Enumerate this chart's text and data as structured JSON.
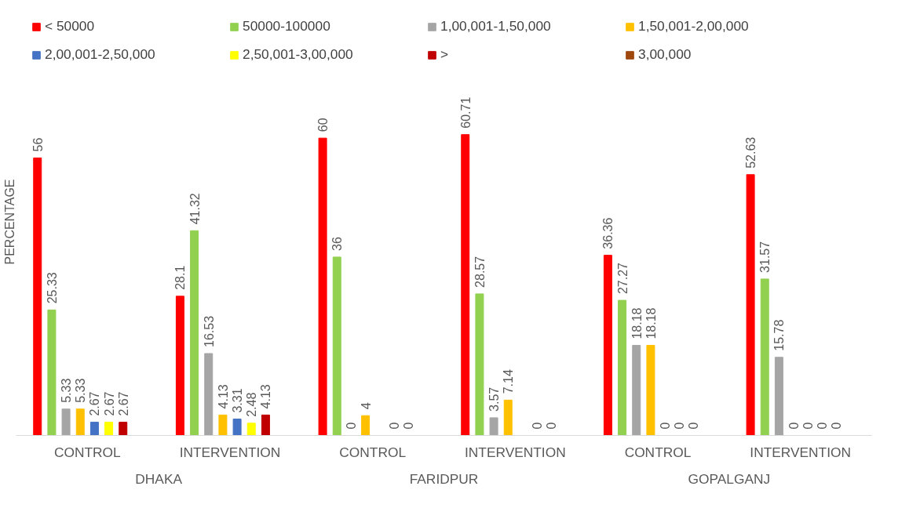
{
  "chart_data": {
    "type": "bar",
    "ylabel": "PERCENTAGE",
    "categories": [
      "CONTROL",
      "INTERVENTION",
      "CONTROL",
      "INTERVENTION",
      "CONTROL",
      "INTERVENTION"
    ],
    "annotations": [
      "DHAKA",
      "FARIDPUR",
      "GOPALGANJ"
    ],
    "tick_labels": "x",
    "grid": false,
    "legend": "top",
    "data_labels": true,
    "series": [
      {
        "name": "< 50000",
        "color": "#ff0000",
        "values": [
          56,
          28.1,
          60,
          60.71,
          36.36,
          52.63
        ]
      },
      {
        "name": "50000-100000",
        "color": "#92d050",
        "values": [
          25.33,
          41.32,
          36,
          28.57,
          27.27,
          31.57
        ]
      },
      {
        "name": "1,00,001-1,50,000",
        "color": "#a5a5a5",
        "values": [
          5.33,
          16.53,
          0,
          3.57,
          18.18,
          15.78
        ]
      },
      {
        "name": "1,50,001-2,00,000",
        "color": "#ffc000",
        "values": [
          5.33,
          4.13,
          4,
          7.14,
          18.18,
          0
        ]
      },
      {
        "name": "2,00,001-2,50,000",
        "color": "#4472c4",
        "values": [
          2.67,
          3.31,
          null,
          null,
          0,
          0
        ]
      },
      {
        "name": "2,50,001-3,00,000",
        "color": "#ffff00",
        "values": [
          2.67,
          2.48,
          0,
          0,
          0,
          0
        ]
      },
      {
        "name": ">",
        "color": "#c00000",
        "values": [
          2.67,
          4.13,
          0,
          0,
          0,
          0
        ]
      },
      {
        "name": "3,00,000",
        "color": "#9e480e",
        "values": [
          null,
          null,
          null,
          null,
          null,
          null
        ]
      }
    ]
  }
}
